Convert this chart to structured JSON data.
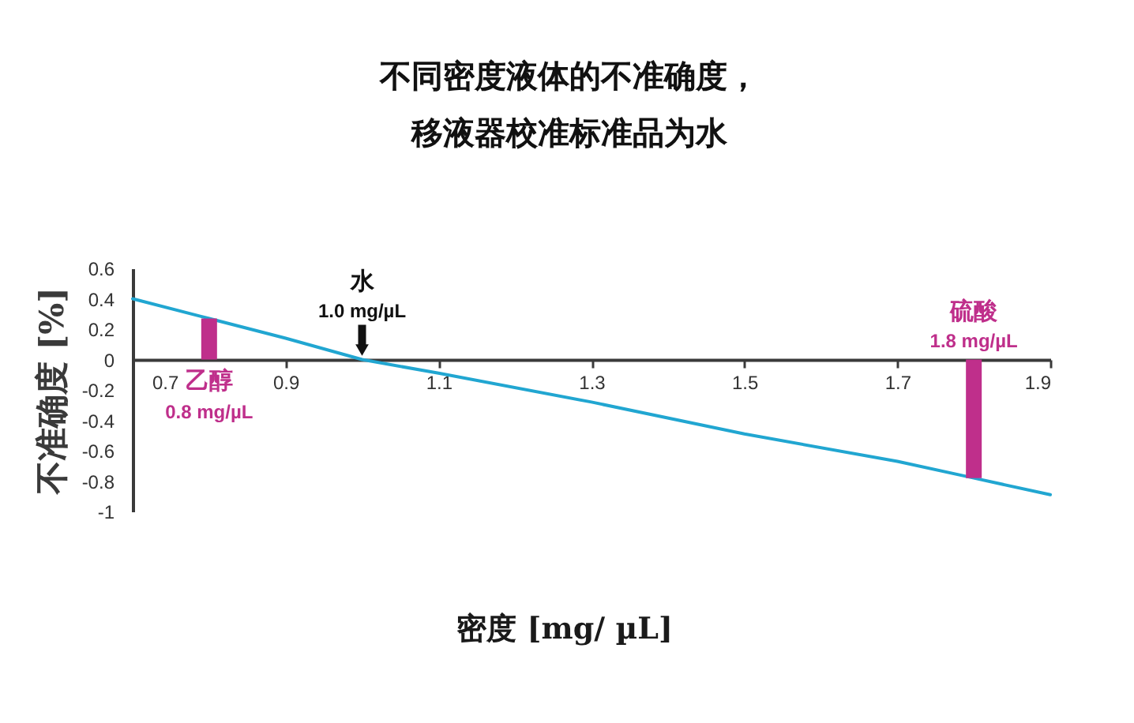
{
  "chart_data": {
    "type": "line",
    "title": "不同密度液体的不准确度，",
    "subtitle": "移液器校准标准品为水",
    "xlabel": "密度 [mg/ µL]",
    "ylabel": "不准确度 [%]",
    "x": [
      0.7,
      0.8,
      0.9,
      1.0,
      1.1,
      1.3,
      1.5,
      1.7,
      1.8,
      1.9
    ],
    "series": [
      {
        "color": "#21a6d1",
        "values": [
          0.4,
          0.27,
          0.14,
          0,
          -0.09,
          -0.28,
          -0.49,
          -0.67,
          -0.78,
          -0.89
        ]
      },
      {
        "type": "bar",
        "x": [
          0.8,
          1.8
        ],
        "color": "#bf2f8b",
        "values": [
          0.27,
          -0.78
        ]
      }
    ],
    "xlim": [
      0.7,
      1.9
    ],
    "ylim": [
      -1,
      0.6
    ],
    "xticks": [
      0.7,
      0.9,
      1.1,
      1.3,
      1.5,
      1.7,
      1.9
    ],
    "yticks": [
      0.6,
      0.4,
      0.2,
      0,
      -0.2,
      -0.4,
      -0.6,
      -0.8,
      -1
    ],
    "annotations": [
      {
        "text": "乙醇",
        "x": 0.8,
        "y": 0
      },
      {
        "text": "0.8 mg/µL",
        "x": 0.8,
        "y": 0
      },
      {
        "text": "水",
        "x": 1.0,
        "y": 0
      },
      {
        "text": "1.0 mg/µL",
        "x": 1.0,
        "y": 0
      },
      {
        "text": "硫酸",
        "x": 1.8,
        "y": 0
      },
      {
        "text": "1.8 mg/µL",
        "x": 1.8,
        "y": 0
      }
    ],
    "grid": false
  }
}
